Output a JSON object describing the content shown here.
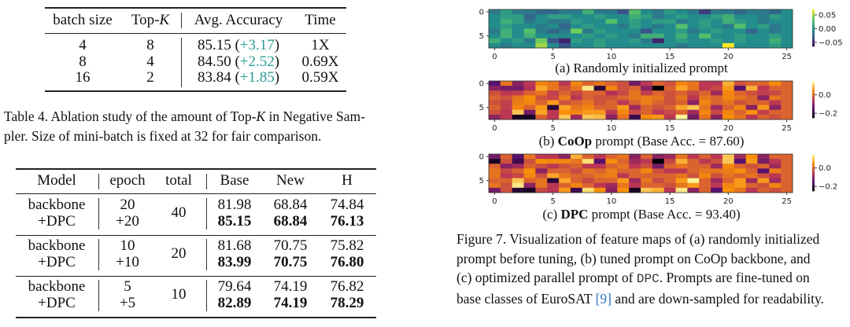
{
  "table4": {
    "headers": [
      "batch size",
      "Top-",
      "K",
      "Avg. Accuracy",
      "Time"
    ],
    "rows": [
      {
        "batch": "4",
        "topk": "8",
        "acc": "85.15",
        "delta": "+3.17",
        "time": "1X"
      },
      {
        "batch": "8",
        "topk": "4",
        "acc": "84.50",
        "delta": "+2.52",
        "time": "0.69X"
      },
      {
        "batch": "16",
        "topk": "2",
        "acc": "83.84",
        "delta": "+1.85",
        "time": "0.59X"
      }
    ],
    "caption_line1_a": "Table 4. Ablation study of the amount of Top-",
    "caption_k": "K",
    "caption_line1_b": " in Negative Sam-",
    "caption_line2": "pler. Size of mini-batch is fixed at 32 for fair comparison."
  },
  "table5": {
    "headers": [
      "Model",
      "epoch",
      "total",
      "Base",
      "New",
      "H"
    ],
    "groups": [
      {
        "total": "40",
        "rows": [
          {
            "model": "backbone",
            "epoch": "20",
            "base": "81.98",
            "new": "68.84",
            "h": "74.84"
          },
          {
            "model": "+DPC",
            "epoch": "+20",
            "base": "85.15",
            "new": "68.84",
            "h": "76.13"
          }
        ]
      },
      {
        "total": "20",
        "rows": [
          {
            "model": "backbone",
            "epoch": "10",
            "base": "81.68",
            "new": "70.75",
            "h": "75.82"
          },
          {
            "model": "+DPC",
            "epoch": "+10",
            "base": "83.99",
            "new": "70.75",
            "h": "76.80"
          }
        ]
      },
      {
        "total": "10",
        "rows": [
          {
            "model": "backbone",
            "epoch": "5",
            "base": "79.64",
            "new": "74.19",
            "h": "76.82"
          },
          {
            "model": "+DPC",
            "epoch": "+5",
            "base": "82.89",
            "new": "74.19",
            "h": "78.29"
          }
        ]
      }
    ]
  },
  "figure7": {
    "caption_lines": [
      "Figure 7. Visualization of feature maps of (a) randomly initialized",
      "prompt before tuning, (b) tuned prompt on CoOp backbone, and"
    ],
    "caption_line3_a": "(c) optimized parallel prompt of ",
    "caption_line3_mono": "DPC",
    "caption_line3_b": ". Prompts are fine-tuned on",
    "caption_line4_a": "base classes of EuroSAT ",
    "caption_line4_ref": "[9]",
    "caption_line4_b": " and are down-sampled for readability."
  },
  "chart_data": [
    {
      "type": "heatmap",
      "colormap": "viridis",
      "caption_prefix": "(a) Randomly initialized prompt",
      "caption_bold": "",
      "caption_suffix": "",
      "xticks": [
        0,
        5,
        10,
        15,
        20,
        25
      ],
      "yticks": [
        0,
        5
      ],
      "colorbar_ticks": [
        {
          "v": 0.05,
          "label": "0.05"
        },
        {
          "v": 0.0,
          "label": "0.00"
        },
        {
          "v": -0.05,
          "label": "−0.05"
        }
      ],
      "vmin": -0.065,
      "vmax": 0.07,
      "values": [
        [
          -0.01,
          0.01,
          -0.01,
          -0.01,
          -0.02,
          -0.02,
          -0.01,
          -0.01,
          0.02,
          -0.01,
          -0.01,
          -0.03,
          0.03,
          0.0,
          -0.01,
          0.01,
          0.0,
          -0.01,
          -0.04,
          -0.01,
          -0.01,
          -0.02,
          -0.01,
          -0.01,
          -0.02,
          0.0
        ],
        [
          0.0,
          0.01,
          0.01,
          -0.02,
          0.0,
          0.01,
          0.01,
          0.0,
          0.0,
          0.01,
          0.0,
          0.0,
          0.02,
          0.01,
          -0.01,
          0.0,
          0.01,
          0.0,
          0.0,
          0.01,
          0.02,
          0.0,
          0.0,
          -0.01,
          0.01,
          0.0
        ],
        [
          0.0,
          0.02,
          0.01,
          -0.01,
          0.0,
          -0.01,
          -0.01,
          0.01,
          0.0,
          0.0,
          0.03,
          0.0,
          0.01,
          0.0,
          0.01,
          0.01,
          -0.01,
          0.0,
          0.01,
          0.0,
          0.02,
          0.01,
          0.0,
          -0.01,
          0.0,
          0.0
        ],
        [
          0.0,
          0.01,
          0.0,
          0.0,
          -0.01,
          0.0,
          -0.02,
          0.0,
          0.01,
          0.0,
          0.0,
          -0.01,
          0.01,
          0.0,
          -0.01,
          0.0,
          0.03,
          0.0,
          0.01,
          0.0,
          -0.01,
          0.03,
          0.0,
          0.01,
          -0.01,
          0.0
        ],
        [
          -0.01,
          0.02,
          0.0,
          0.03,
          -0.01,
          -0.02,
          -0.01,
          0.04,
          -0.01,
          0.01,
          0.0,
          0.0,
          0.0,
          -0.03,
          0.0,
          0.0,
          0.01,
          -0.01,
          0.0,
          0.01,
          0.0,
          0.0,
          -0.02,
          0.0,
          -0.01,
          0.0
        ],
        [
          0.0,
          0.02,
          0.0,
          0.02,
          0.0,
          0.0,
          0.0,
          0.0,
          0.01,
          0.0,
          0.01,
          0.0,
          -0.01,
          0.02,
          0.02,
          0.0,
          0.02,
          0.0,
          0.03,
          0.0,
          0.0,
          0.01,
          0.0,
          0.0,
          0.01,
          0.0
        ],
        [
          0.02,
          0.0,
          0.01,
          -0.01,
          0.04,
          -0.03,
          -0.05,
          0.01,
          0.0,
          0.01,
          0.0,
          0.0,
          0.01,
          -0.01,
          -0.05,
          0.0,
          0.01,
          0.0,
          0.0,
          0.01,
          0.0,
          0.01,
          0.0,
          0.0,
          0.02,
          0.0
        ],
        [
          0.0,
          -0.01,
          0.0,
          0.0,
          0.05,
          0.0,
          -0.03,
          0.0,
          0.0,
          0.01,
          0.0,
          0.0,
          0.0,
          0.0,
          0.0,
          0.0,
          -0.01,
          0.0,
          0.0,
          0.0,
          0.07,
          0.0,
          0.0,
          0.0,
          0.01,
          0.0
        ]
      ]
    },
    {
      "type": "heatmap",
      "colormap": "inferno",
      "caption_prefix": "(b) ",
      "caption_bold": "CoOp",
      "caption_suffix": " prompt (Base Acc. = 87.60)",
      "xticks": [
        0,
        5,
        10,
        15,
        20,
        25
      ],
      "yticks": [
        0,
        5
      ],
      "colorbar_ticks": [
        {
          "v": 0.0,
          "label": "0.0"
        },
        {
          "v": -0.2,
          "label": "−0.2"
        }
      ],
      "vmin": -0.25,
      "vmax": 0.15,
      "values": [
        [
          -0.15,
          0.02,
          -0.1,
          -0.05,
          0.04,
          0.02,
          -0.05,
          0.04,
          0.0,
          0.02,
          0.0,
          -0.02,
          -0.12,
          -0.05,
          0.0,
          -0.02,
          0.04,
          0.02,
          -0.05,
          -0.05,
          0.08,
          -0.02,
          0.0,
          0.0,
          0.05,
          0.0
        ],
        [
          -0.1,
          -0.12,
          -0.12,
          -0.06,
          0.07,
          0.02,
          -0.02,
          0.02,
          0.13,
          -0.2,
          0.04,
          -0.02,
          0.0,
          -0.1,
          -0.25,
          0.0,
          0.07,
          0.02,
          -0.05,
          -0.03,
          0.06,
          -0.15,
          0.08,
          -0.05,
          0.0,
          0.0
        ],
        [
          -0.02,
          -0.05,
          -0.04,
          0.0,
          0.02,
          -0.04,
          0.0,
          -0.03,
          0.0,
          0.0,
          -0.06,
          -0.03,
          0.02,
          -0.04,
          0.0,
          -0.02,
          0.0,
          -0.03,
          0.0,
          -0.08,
          0.04,
          0.0,
          -0.02,
          -0.04,
          -0.03,
          0.0
        ],
        [
          0.0,
          -0.02,
          0.02,
          0.05,
          -0.02,
          -0.03,
          0.03,
          -0.05,
          0.0,
          -0.02,
          -0.02,
          0.0,
          0.02,
          0.03,
          0.02,
          -0.02,
          0.02,
          -0.05,
          0.02,
          0.0,
          0.04,
          0.02,
          0.0,
          -0.1,
          0.02,
          0.0
        ],
        [
          -0.02,
          -0.04,
          0.03,
          0.04,
          0.0,
          0.06,
          -0.02,
          0.0,
          0.02,
          -0.02,
          0.0,
          -0.05,
          0.0,
          0.03,
          0.0,
          -0.02,
          0.0,
          -0.1,
          0.04,
          0.0,
          0.02,
          -0.02,
          0.0,
          0.0,
          -0.05,
          0.0
        ],
        [
          0.0,
          -0.04,
          0.04,
          0.0,
          0.06,
          -0.2,
          0.07,
          0.02,
          0.04,
          0.0,
          0.0,
          0.06,
          -0.08,
          0.0,
          -0.02,
          0.0,
          0.07,
          0.1,
          0.02,
          -0.08,
          0.0,
          0.04,
          -0.1,
          0.06,
          -0.1,
          0.0
        ],
        [
          -0.02,
          -0.05,
          0.1,
          -0.12,
          0.07,
          -0.05,
          0.05,
          0.04,
          0.06,
          0.06,
          -0.05,
          0.04,
          -0.03,
          0.0,
          -0.05,
          -0.03,
          0.0,
          -0.08,
          0.04,
          -0.03,
          0.04,
          0.0,
          0.05,
          -0.04,
          0.0,
          0.0
        ],
        [
          -0.1,
          -0.05,
          -0.22,
          -0.22,
          0.0,
          -0.05,
          0.1,
          -0.08,
          0.1,
          0.09,
          -0.1,
          0.02,
          -0.18,
          0.05,
          0.06,
          -0.05,
          0.14,
          -0.12,
          0.02,
          -0.1,
          0.05,
          0.02,
          -0.05,
          0.0,
          -0.02,
          0.0
        ]
      ]
    },
    {
      "type": "heatmap",
      "colormap": "inferno",
      "caption_prefix": "(c) ",
      "caption_bold": "DPC",
      "caption_suffix": " prompt (Base Acc. = 93.40)",
      "xticks": [
        0,
        5,
        10,
        15,
        20,
        25
      ],
      "yticks": [
        0,
        5
      ],
      "colorbar_ticks": [
        {
          "v": 0.0,
          "label": "0.0"
        },
        {
          "v": -0.2,
          "label": "−0.2"
        }
      ],
      "vmin": -0.25,
      "vmax": 0.15,
      "values": [
        [
          -0.12,
          0.0,
          -0.15,
          0.02,
          -0.05,
          -0.05,
          -0.1,
          0.08,
          0.0,
          -0.05,
          0.0,
          0.02,
          -0.1,
          0.0,
          -0.1,
          -0.08,
          0.02,
          -0.05,
          0.0,
          -0.05,
          0.1,
          -0.08,
          0.05,
          -0.1,
          0.0,
          0.0
        ],
        [
          -0.22,
          -0.02,
          -0.18,
          -0.02,
          0.05,
          0.04,
          0.04,
          0.02,
          0.12,
          -0.15,
          0.05,
          0.0,
          -0.08,
          -0.05,
          -0.25,
          -0.03,
          0.08,
          0.0,
          -0.05,
          -0.02,
          0.1,
          -0.15,
          0.06,
          -0.12,
          -0.05,
          0.0
        ],
        [
          0.0,
          -0.1,
          -0.08,
          0.0,
          -0.02,
          -0.05,
          -0.02,
          0.0,
          -0.05,
          -0.05,
          0.0,
          0.02,
          -0.05,
          -0.02,
          -0.12,
          0.0,
          0.02,
          0.0,
          0.0,
          -0.08,
          0.04,
          0.0,
          -0.02,
          0.0,
          -0.08,
          0.0
        ],
        [
          0.02,
          -0.03,
          0.0,
          0.05,
          -0.1,
          0.0,
          0.0,
          -0.03,
          0.02,
          0.0,
          0.03,
          0.0,
          0.0,
          0.04,
          -0.02,
          -0.05,
          -0.05,
          0.0,
          0.02,
          0.02,
          0.03,
          0.05,
          0.0,
          -0.15,
          0.03,
          0.0
        ],
        [
          0.02,
          -0.05,
          -0.03,
          0.04,
          -0.02,
          0.07,
          0.02,
          0.0,
          0.0,
          0.02,
          0.03,
          -0.05,
          0.0,
          0.0,
          0.0,
          0.0,
          0.02,
          -0.02,
          0.04,
          -0.02,
          0.02,
          0.0,
          0.02,
          -0.02,
          -0.05,
          0.0
        ],
        [
          0.0,
          0.0,
          0.1,
          0.0,
          0.02,
          -0.2,
          0.07,
          0.0,
          -0.03,
          0.0,
          0.0,
          0.06,
          -0.08,
          0.02,
          -0.03,
          0.0,
          0.06,
          0.14,
          0.0,
          -0.08,
          0.0,
          0.06,
          -0.08,
          0.06,
          -0.08,
          0.0
        ],
        [
          0.02,
          -0.02,
          0.13,
          -0.1,
          0.02,
          -0.05,
          0.0,
          0.04,
          0.0,
          -0.05,
          -0.08,
          0.02,
          -0.05,
          0.0,
          0.0,
          -0.02,
          0.02,
          0.06,
          0.0,
          -0.05,
          0.04,
          0.06,
          0.0,
          -0.02,
          0.04,
          0.0
        ],
        [
          -0.12,
          -0.02,
          -0.2,
          -0.22,
          -0.03,
          -0.05,
          0.06,
          -0.18,
          0.12,
          0.05,
          -0.1,
          0.05,
          -0.22,
          0.1,
          0.08,
          -0.05,
          0.13,
          -0.1,
          0.0,
          -0.15,
          0.05,
          0.02,
          -0.05,
          0.0,
          -0.02,
          0.0
        ]
      ]
    }
  ]
}
